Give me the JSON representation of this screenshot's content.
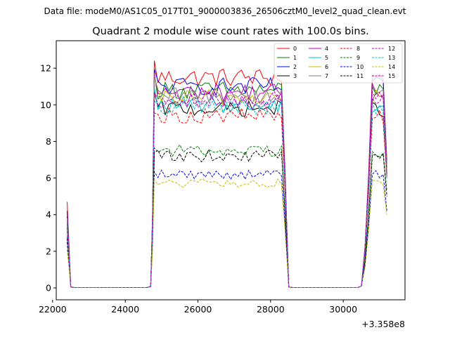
{
  "figure": {
    "suptitle": "Data file: modeM0/AS1C05_017T01_9000003836_26506cztM0_level2_quad_clean.evt"
  },
  "chart_data": {
    "type": "line",
    "title": "Quadrant 2 module wise count rates with 100.0s bins.",
    "xlabel": "",
    "ylabel": "",
    "x_offset_label": "+3.358e8",
    "xlim": [
      22100,
      31700
    ],
    "ylim": [
      -0.65,
      13.5
    ],
    "xticks": [
      22000,
      24000,
      26000,
      28000,
      30000
    ],
    "xtick_labels": [
      "22000",
      "24000",
      "26000",
      "28000",
      "30000"
    ],
    "yticks": [
      0,
      2,
      4,
      6,
      8,
      10,
      12
    ],
    "ytick_labels": [
      "0",
      "2",
      "4",
      "6",
      "8",
      "10",
      "12"
    ],
    "grid": false,
    "legend_position": "top-right",
    "legend_columns": 4,
    "series": [
      {
        "name": "0",
        "color": "#ff0000",
        "dash": "solid",
        "level": 11.5,
        "spike": 4.7,
        "end": 7.0
      },
      {
        "name": "1",
        "color": "#008000",
        "dash": "solid",
        "level": 10.8,
        "spike": 3.9,
        "end": 6.8
      },
      {
        "name": "2",
        "color": "#0000ff",
        "dash": "solid",
        "level": 11.0,
        "spike": 4.2,
        "end": 6.6
      },
      {
        "name": "3",
        "color": "#000000",
        "dash": "solid",
        "level": 9.8,
        "spike": 3.5,
        "end": 6.2
      },
      {
        "name": "4",
        "color": "#bf00bf",
        "dash": "solid",
        "level": 10.7,
        "spike": 3.6,
        "end": 6.5
      },
      {
        "name": "5",
        "color": "#00bfbf",
        "dash": "solid",
        "level": 10.0,
        "spike": 3.4,
        "end": 6.3
      },
      {
        "name": "6",
        "color": "#bfbf00",
        "dash": "solid",
        "level": 10.4,
        "spike": 3.8,
        "end": 6.4
      },
      {
        "name": "7",
        "color": "#808080",
        "dash": "solid",
        "level": 10.5,
        "spike": 3.7,
        "end": 6.6
      },
      {
        "name": "8",
        "color": "#ff0000",
        "dash": "dashed",
        "level": 9.4,
        "spike": 3.1,
        "end": 6.0
      },
      {
        "name": "9",
        "color": "#008000",
        "dash": "dashed",
        "level": 7.5,
        "spike": 2.8,
        "end": 5.3
      },
      {
        "name": "10",
        "color": "#0000ff",
        "dash": "dashed",
        "level": 6.2,
        "spike": 2.5,
        "end": 4.2
      },
      {
        "name": "11",
        "color": "#000000",
        "dash": "dashed",
        "level": 7.2,
        "spike": 2.7,
        "end": 5.0
      },
      {
        "name": "12",
        "color": "#bf00bf",
        "dash": "dashed",
        "level": 10.2,
        "spike": 3.3,
        "end": 6.1
      },
      {
        "name": "13",
        "color": "#00bfbf",
        "dash": "dashed",
        "level": 9.9,
        "spike": 3.2,
        "end": 6.0
      },
      {
        "name": "14",
        "color": "#bfbf00",
        "dash": "dashed",
        "level": 5.7,
        "spike": 2.1,
        "end": 4.0
      },
      {
        "name": "15",
        "color": "#bf00bf",
        "dash": "dashed",
        "level": 10.3,
        "spike": 3.3,
        "end": 6.1
      }
    ],
    "time_segments": [
      {
        "shape": "decay",
        "x": [
          22400,
          22500
        ]
      },
      {
        "shape": "zero",
        "x": [
          22500,
          24700
        ]
      },
      {
        "shape": "plateau",
        "x": [
          24700,
          28500
        ]
      },
      {
        "shape": "zero",
        "x": [
          28500,
          30500
        ]
      },
      {
        "shape": "plateau",
        "x": [
          30500,
          31200
        ]
      }
    ]
  }
}
